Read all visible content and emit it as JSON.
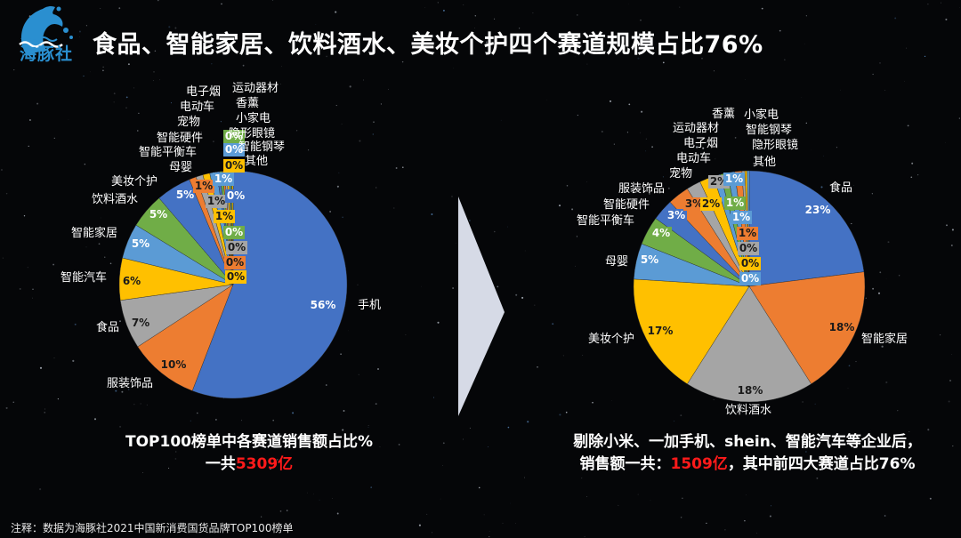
{
  "header": {
    "logo_text": "海豚社",
    "title": "食品、智能家居、饮料酒水、美妆个护四个赛道规模占比76%"
  },
  "colors": {
    "blue": "#4472c4",
    "orange": "#ed7d31",
    "gray": "#a5a5a5",
    "yellow": "#ffc000",
    "light_blue": "#5b9bd5",
    "green": "#70ad47",
    "highlight_red": "#ff1a1a",
    "arrow": "#d6dae6"
  },
  "captions": {
    "left_line1": "TOP100榜单中各赛道销售额占比%",
    "left_line2_prefix": "一共",
    "left_line2_value": "5309亿",
    "right_line1": "剔除小米、一加手机、shein、智能汽车等企业后，",
    "right_line2_prefix": "销售额一共：",
    "right_line2_value": "1509亿",
    "right_line2_suffix": "，其中前四大赛道占比76%"
  },
  "footnote": "注释：数据为海豚社2021中国新消费国货品牌TOP100榜单",
  "chart_data": [
    {
      "type": "pie",
      "title": "TOP100榜单中各赛道销售额占比%",
      "total": "5309亿",
      "categories": [
        "手机",
        "服装饰品",
        "食品",
        "智能汽车",
        "智能家居",
        "饮料酒水",
        "美妆个护",
        "母婴",
        "智能平衡车",
        "智能硬件",
        "宠物",
        "电动车",
        "电子烟",
        "运动器材",
        "香薰",
        "小家电",
        "隐形眼镜",
        "智能钢琴",
        "其他"
      ],
      "values": [
        56,
        10,
        7,
        6,
        5,
        5,
        5,
        1,
        1,
        1,
        1,
        0.4,
        0.4,
        0.3,
        0.3,
        0.3,
        0.2,
        0.2,
        0.2
      ],
      "labels": [
        "56%",
        "10%",
        "7%",
        "6%",
        "5%",
        "5%",
        "5%",
        "1%",
        "1%",
        "1%",
        "1%",
        "0%",
        "0%",
        "0%",
        "0%",
        "0%",
        "0%",
        "0%",
        "0%"
      ],
      "colors": [
        "#4472c4",
        "#ed7d31",
        "#a5a5a5",
        "#ffc000",
        "#5b9bd5",
        "#70ad47",
        "#4472c4",
        "#ed7d31",
        "#a5a5a5",
        "#ffc000",
        "#5b9bd5",
        "#4472c4",
        "#70ad47",
        "#ed7d31",
        "#a5a5a5",
        "#ffc000",
        "#5b9bd5",
        "#70ad47",
        "#ffc000"
      ],
      "start_angle": "12 o'clock, clockwise"
    },
    {
      "type": "pie",
      "title": "剔除小米、一加手机、shein、智能汽车等企业后，销售额一共：1509亿，其中前四大赛道占比76%",
      "total": "1509亿",
      "categories": [
        "食品",
        "智能家居",
        "饮料酒水",
        "美妆个护",
        "母婴",
        "智能平衡车",
        "智能硬件",
        "服装饰品",
        "宠物",
        "电动车",
        "电子烟",
        "运动器材",
        "香薰",
        "小家电",
        "智能钢琴",
        "隐形眼镜",
        "其他"
      ],
      "values": [
        23,
        18,
        18,
        17,
        5,
        4,
        3,
        3,
        2,
        2,
        1,
        1,
        1,
        1,
        0.4,
        0.3,
        0.3
      ],
      "labels": [
        "23%",
        "18%",
        "18%",
        "17%",
        "5%",
        "4%",
        "3%",
        "3%",
        "2%",
        "2%",
        "1%",
        "1%",
        "1%",
        "1%",
        "0%",
        "0%",
        "0%"
      ],
      "colors": [
        "#4472c4",
        "#ed7d31",
        "#a5a5a5",
        "#ffc000",
        "#5b9bd5",
        "#70ad47",
        "#4472c4",
        "#ed7d31",
        "#a5a5a5",
        "#ffc000",
        "#5b9bd5",
        "#70ad47",
        "#5b9bd5",
        "#ed7d31",
        "#a5a5a5",
        "#ffc000",
        "#5b9bd5"
      ],
      "start_angle": "12 o'clock, clockwise"
    }
  ]
}
